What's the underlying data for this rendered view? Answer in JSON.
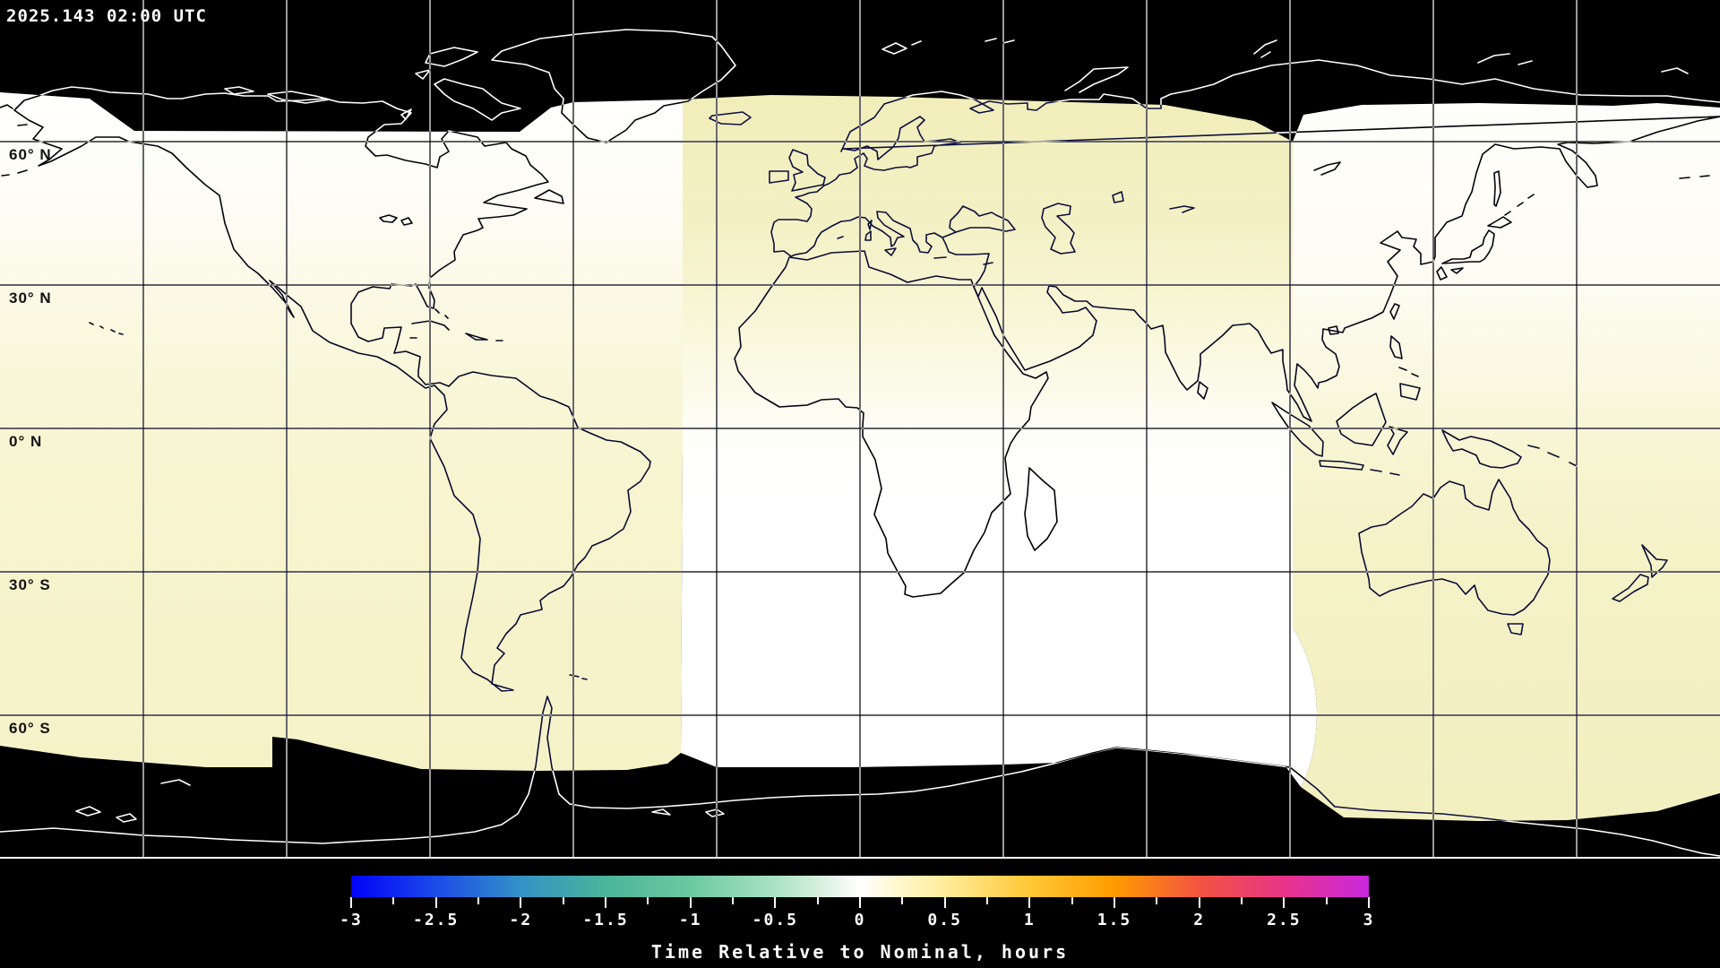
{
  "header": {
    "timestamp": "2025.143 02:00 UTC"
  },
  "map": {
    "projection": "equirectangular world map",
    "latitude_labels": [
      "60° N",
      "30° N",
      "0° N",
      "30° S",
      "60° S"
    ],
    "gridline_spacing_deg": 30,
    "no_data_color": "#000000",
    "coastline_style": "white over black, dark over data (inverted)",
    "regions": [
      {
        "name": "west-swath",
        "approx_value_hours_north_to_south": [
          0.0,
          0.4
        ],
        "colors": [
          "#FFFFFE",
          "#F5F2C6"
        ]
      },
      {
        "name": "central-swath",
        "approx_value_hours_north_to_south": [
          0.45,
          0.0
        ],
        "colors": [
          "#F1EEBA",
          "#FFFFFF"
        ]
      },
      {
        "name": "east-swath",
        "approx_value_hours_north_to_south": [
          0.0,
          0.45
        ],
        "colors": [
          "#FEFEFA",
          "#F2EFC0"
        ]
      }
    ]
  },
  "colorbar": {
    "title": "Time Relative to Nominal, hours",
    "min": -3,
    "max": 3,
    "major_tick_step": 0.5,
    "minor_tick_step": 0.25,
    "tick_labels": [
      "-3",
      "-2.5",
      "-2",
      "-1.5",
      "-1",
      "-0.5",
      "0",
      "0.5",
      "1",
      "1.5",
      "2",
      "2.5",
      "3"
    ],
    "gradient_stops": [
      {
        "value": -3.0,
        "color": "#0202F8"
      },
      {
        "value": -2.5,
        "color": "#1B4BE8"
      },
      {
        "value": -2.0,
        "color": "#3392C6"
      },
      {
        "value": -1.5,
        "color": "#4CB49A"
      },
      {
        "value": -1.0,
        "color": "#6BC9A0"
      },
      {
        "value": -0.5,
        "color": "#AAE2C4"
      },
      {
        "value": -0.25,
        "color": "#D6EFDB"
      },
      {
        "value": 0.0,
        "color": "#FFFFFF"
      },
      {
        "value": 0.25,
        "color": "#FFF6C8"
      },
      {
        "value": 0.5,
        "color": "#FFEC9A"
      },
      {
        "value": 1.0,
        "color": "#FFC835"
      },
      {
        "value": 1.5,
        "color": "#FF9B00"
      },
      {
        "value": 2.0,
        "color": "#F25440"
      },
      {
        "value": 2.5,
        "color": "#E83389"
      },
      {
        "value": 3.0,
        "color": "#C928DE"
      }
    ]
  }
}
